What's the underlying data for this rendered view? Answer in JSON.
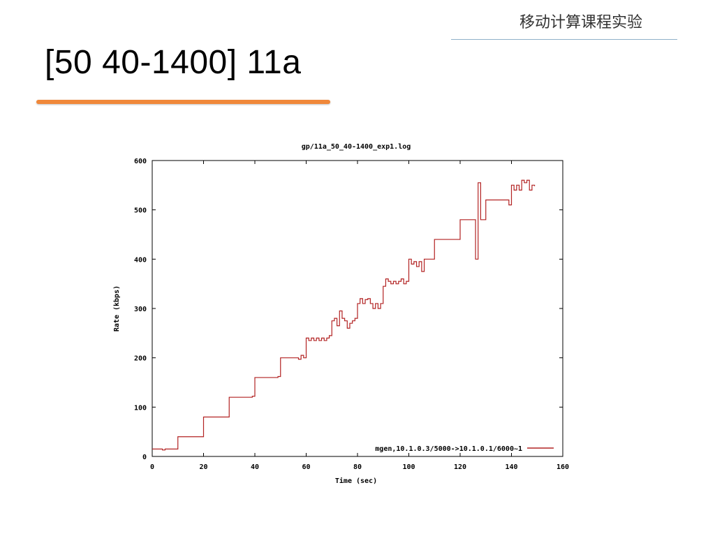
{
  "header": {
    "course_title": "移动计算课程实验"
  },
  "slide": {
    "title": "[50 40-1400] 11a"
  },
  "colors": {
    "accent_underline": "#f0883a",
    "series_line": "#b22222"
  },
  "chart_data": {
    "type": "line",
    "title": "gp/11a_50_40-1400_exp1.log",
    "xlabel": "Time (sec)",
    "ylabel": "Rate (kbps)",
    "xlim": [
      0,
      160
    ],
    "ylim": [
      0,
      600
    ],
    "xticks": [
      0,
      20,
      40,
      60,
      80,
      100,
      120,
      140,
      160
    ],
    "yticks": [
      0,
      100,
      200,
      300,
      400,
      500,
      600
    ],
    "grid": false,
    "legend_position": "bottom-right",
    "series": [
      {
        "name": "mgen,10.1.0.3/5000->10.1.0.1/6000~1",
        "step": true,
        "x": [
          0,
          4,
          5,
          10,
          20,
          30,
          39,
          40,
          49,
          50,
          57,
          58,
          59,
          60,
          61,
          62,
          63,
          64,
          65,
          66,
          67,
          68,
          69,
          70,
          71,
          72,
          73,
          74,
          75,
          76,
          77,
          78,
          79,
          80,
          81,
          82,
          83,
          84,
          85,
          86,
          87,
          88,
          89,
          90,
          91,
          92,
          93,
          94,
          95,
          96,
          97,
          98,
          99,
          100,
          101,
          102,
          103,
          104,
          105,
          106,
          110,
          120,
          126,
          127,
          128,
          130,
          139,
          140,
          141,
          142,
          143,
          144,
          145,
          146,
          147,
          148,
          149
        ],
        "y": [
          15,
          13,
          15,
          40,
          80,
          120,
          122,
          160,
          162,
          200,
          197,
          205,
          200,
          240,
          235,
          240,
          235,
          240,
          235,
          240,
          235,
          240,
          245,
          275,
          280,
          265,
          295,
          280,
          275,
          260,
          270,
          275,
          280,
          310,
          320,
          310,
          318,
          320,
          310,
          300,
          310,
          300,
          310,
          345,
          360,
          355,
          350,
          355,
          350,
          355,
          360,
          350,
          355,
          400,
          390,
          395,
          385,
          395,
          375,
          400,
          440,
          480,
          400,
          555,
          480,
          520,
          510,
          550,
          540,
          550,
          540,
          560,
          555,
          560,
          540,
          550,
          548
        ]
      }
    ]
  }
}
